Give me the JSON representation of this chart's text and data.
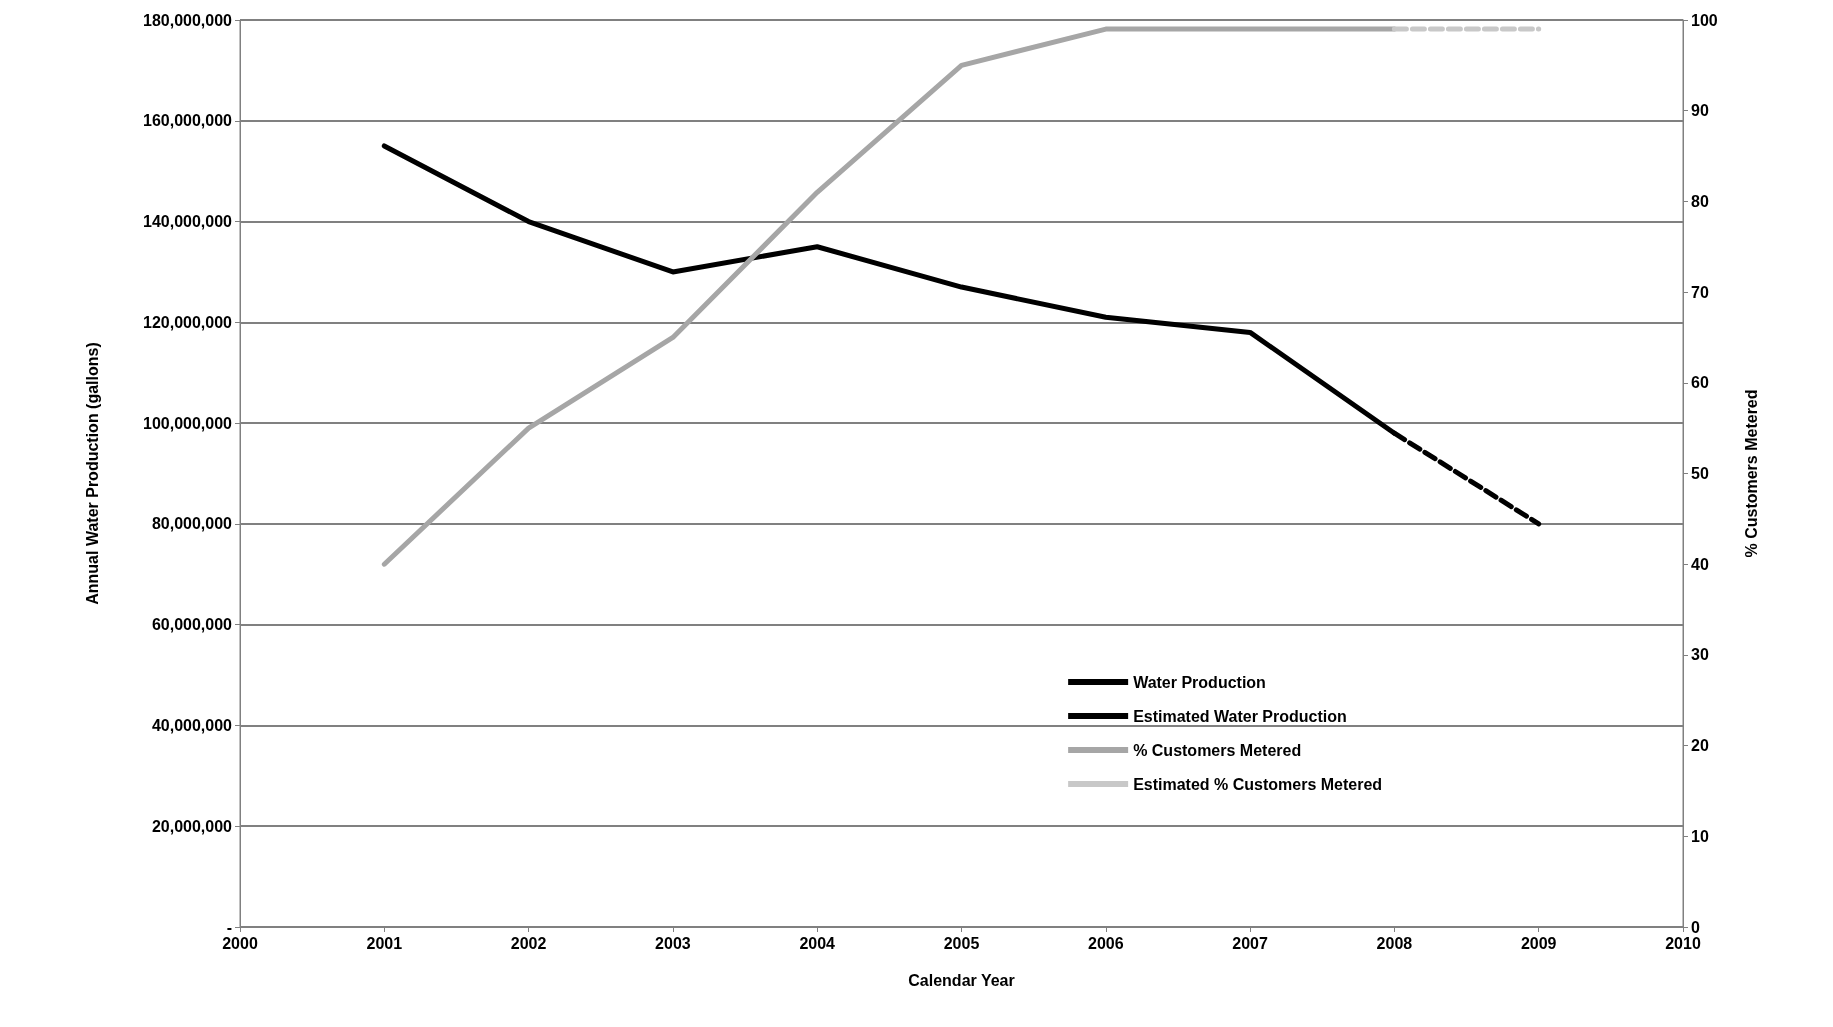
{
  "chart_data": {
    "type": "line",
    "xlabel": "Calendar Year",
    "ylabel": "Annual Water Production (gallons)",
    "y2label": "% Customers Metered",
    "x": [
      2001,
      2002,
      2003,
      2004,
      2005,
      2006,
      2007,
      2008,
      2009
    ],
    "series": [
      {
        "name": "Water Production",
        "color": "#000000",
        "line_style": "solid",
        "values": [
          155000000,
          140000000,
          130000000,
          135000000,
          127000000,
          121000000,
          118000000,
          98000000,
          null
        ]
      },
      {
        "name": "Estimated Water Production",
        "color": "#000000",
        "line_style": "dashed",
        "values": [
          null,
          null,
          null,
          null,
          null,
          null,
          null,
          98000000,
          80000000
        ]
      },
      {
        "name": "% Customers Metered",
        "color": "#a6a6a6",
        "line_style": "solid",
        "axis": "y2",
        "values": [
          40,
          55,
          65,
          81,
          95,
          99,
          99,
          99,
          null
        ]
      },
      {
        "name": "Estimated % Customers Metered",
        "color": "#c8c8c8",
        "line_style": "dashed",
        "axis": "y2",
        "values": [
          null,
          null,
          null,
          null,
          null,
          null,
          null,
          99,
          99
        ]
      }
    ],
    "xlim": [
      2000,
      2010
    ],
    "xticks": [
      2000,
      2001,
      2002,
      2003,
      2004,
      2005,
      2006,
      2007,
      2008,
      2009,
      2010
    ],
    "ylim": [
      0,
      180000000
    ],
    "yticks": [
      {
        "value": 0,
        "label": "-"
      },
      {
        "value": 20000000,
        "label": "20,000,000"
      },
      {
        "value": 40000000,
        "label": "40,000,000"
      },
      {
        "value": 60000000,
        "label": "60,000,000"
      },
      {
        "value": 80000000,
        "label": "80,000,000"
      },
      {
        "value": 100000000,
        "label": "100,000,000"
      },
      {
        "value": 120000000,
        "label": "120,000,000"
      },
      {
        "value": 140000000,
        "label": "140,000,000"
      },
      {
        "value": 160000000,
        "label": "160,000,000"
      },
      {
        "value": 180000000,
        "label": "180,000,000"
      }
    ],
    "y2lim": [
      0,
      100
    ],
    "y2ticks": [
      0,
      10,
      20,
      30,
      40,
      50,
      60,
      70,
      80,
      90,
      100
    ],
    "grid": "y",
    "legend": "bottom",
    "marker": "none"
  }
}
